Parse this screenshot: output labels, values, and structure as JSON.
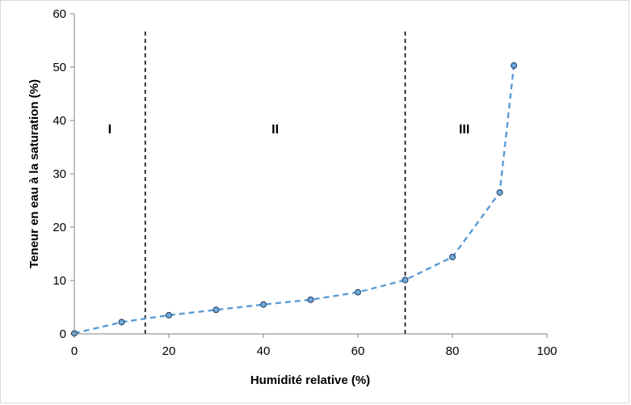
{
  "chart_data": {
    "type": "scatter",
    "title": "",
    "xlabel": "Humidité relative (%)",
    "ylabel": "Teneur en eau à la saturation (%)",
    "xlim": [
      0,
      100
    ],
    "ylim": [
      0,
      60
    ],
    "x_ticks": [
      0,
      20,
      40,
      60,
      80,
      100
    ],
    "y_ticks": [
      0,
      10,
      20,
      30,
      40,
      50,
      60
    ],
    "x_tick_labels": [
      "0",
      "20",
      "40",
      "60",
      "80",
      "100"
    ],
    "y_tick_labels": [
      "0",
      "10",
      "20",
      "30",
      "40",
      "50",
      "60"
    ],
    "grid": false,
    "legend": "none",
    "series": [
      {
        "x": [
          0,
          10,
          20,
          30,
          40,
          50,
          60,
          70,
          80,
          90,
          93
        ],
        "y": [
          0.1,
          2.2,
          3.5,
          4.5,
          5.5,
          6.4,
          7.8,
          10.1,
          14.4,
          26.5,
          50.3
        ],
        "line_style": "dashed",
        "line_color": "#5b9bd5",
        "marker_fill": "#6fa8dc",
        "marker_edge": "#1f3a5a"
      }
    ],
    "vertical_lines": [
      {
        "x": 15,
        "style": "dashed",
        "color": "#000000"
      },
      {
        "x": 70,
        "style": "dashed",
        "color": "#000000"
      }
    ],
    "region_labels": [
      {
        "text": "I",
        "x": 7.5,
        "y": 38.5
      },
      {
        "text": "II",
        "x": 42.5,
        "y": 38.5
      },
      {
        "text": "III",
        "x": 82.5,
        "y": 38.5
      }
    ]
  }
}
